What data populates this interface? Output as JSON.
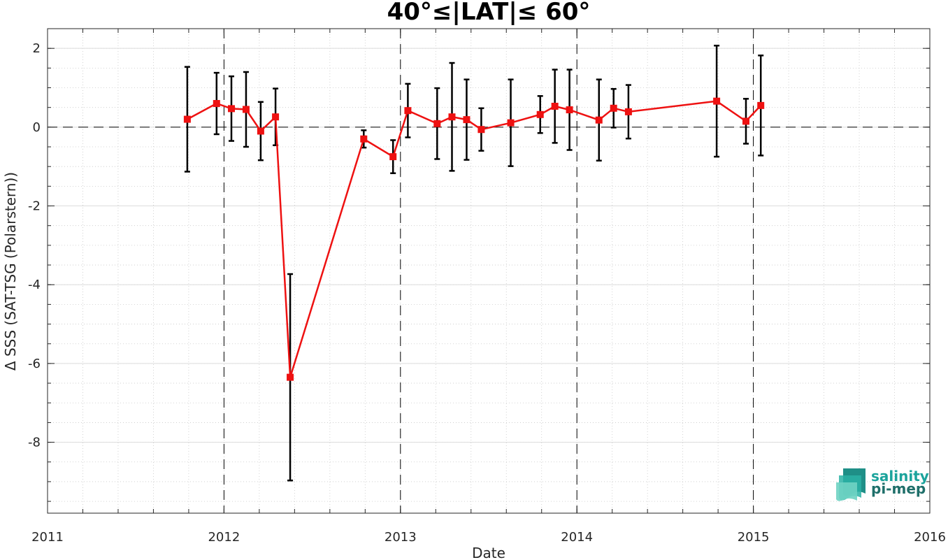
{
  "chart_data": {
    "type": "line",
    "title": "40°≤|LAT|≤ 60°",
    "xlabel": "Date",
    "ylabel": "Δ SSS (SAT-TSG (Polarstern))",
    "xlim": [
      2011,
      2016
    ],
    "ylim": [
      -9.8,
      2.5
    ],
    "x_ticks": [
      2011,
      2012,
      2013,
      2014,
      2015,
      2016
    ],
    "x_tick_labels": [
      "2011",
      "2012",
      "2013",
      "2014",
      "2015",
      "2016"
    ],
    "y_ticks": [
      -8,
      -6,
      -4,
      -2,
      0,
      2
    ],
    "y_tick_labels": [
      "-8",
      "-6",
      "-4",
      "-2",
      "0",
      "2"
    ],
    "grid": true,
    "reference_line_y": 0,
    "year_marker_lines": [
      2012,
      2013,
      2014,
      2015
    ],
    "series": [
      {
        "color": "#ee1111",
        "marker": "square",
        "errorbar_color": "#000000",
        "points": [
          {
            "x": 2011.792,
            "y": 0.2,
            "err": 1.33
          },
          {
            "x": 2011.958,
            "y": 0.6,
            "err": 0.78
          },
          {
            "x": 2012.042,
            "y": 0.47,
            "err": 0.82
          },
          {
            "x": 2012.125,
            "y": 0.45,
            "err": 0.95
          },
          {
            "x": 2012.208,
            "y": -0.1,
            "err": 0.74
          },
          {
            "x": 2012.292,
            "y": 0.26,
            "err": 0.72
          },
          {
            "x": 2012.375,
            "y": -6.35,
            "err": 2.62
          },
          {
            "x": 2012.792,
            "y": -0.3,
            "err": 0.22
          },
          {
            "x": 2012.958,
            "y": -0.75,
            "err": 0.42
          },
          {
            "x": 2013.042,
            "y": 0.42,
            "err": 0.68
          },
          {
            "x": 2013.208,
            "y": 0.09,
            "err": 0.9
          },
          {
            "x": 2013.292,
            "y": 0.26,
            "err": 1.37
          },
          {
            "x": 2013.375,
            "y": 0.19,
            "err": 1.02
          },
          {
            "x": 2013.458,
            "y": -0.06,
            "err": 0.54
          },
          {
            "x": 2013.625,
            "y": 0.11,
            "err": 1.1
          },
          {
            "x": 2013.792,
            "y": 0.32,
            "err": 0.47
          },
          {
            "x": 2013.875,
            "y": 0.53,
            "err": 0.93
          },
          {
            "x": 2013.958,
            "y": 0.44,
            "err": 1.02
          },
          {
            "x": 2014.125,
            "y": 0.18,
            "err": 1.03
          },
          {
            "x": 2014.208,
            "y": 0.48,
            "err": 0.49
          },
          {
            "x": 2014.292,
            "y": 0.39,
            "err": 0.68
          },
          {
            "x": 2014.792,
            "y": 0.66,
            "err": 1.41
          },
          {
            "x": 2014.958,
            "y": 0.15,
            "err": 0.57
          },
          {
            "x": 2015.042,
            "y": 0.55,
            "err": 1.27
          }
        ]
      }
    ]
  },
  "logo": {
    "line1": "salinity",
    "line2": "pi-mep",
    "icon": "salinity-wave-icon",
    "color_primary": "#1ba39c",
    "color_dark": "#1f6f6a"
  }
}
